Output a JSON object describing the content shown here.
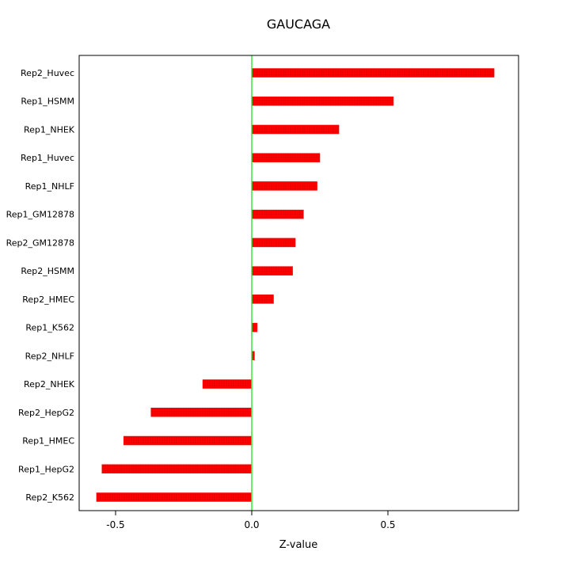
{
  "chart_data": {
    "type": "bar",
    "orientation": "horizontal",
    "title": "GAUCAGA",
    "xlabel": "Z-value",
    "ylabel": "",
    "xlim": [
      -0.63,
      0.98
    ],
    "x_ticks": [
      -0.5,
      0.0,
      0.5
    ],
    "x_tick_labels": [
      "-0.5",
      "0.0",
      "0.5"
    ],
    "grid": false,
    "legend": "none",
    "categories": [
      "Rep2_Huvec",
      "Rep1_HSMM",
      "Rep1_NHEK",
      "Rep1_Huvec",
      "Rep1_NHLF",
      "Rep1_GM12878",
      "Rep2_GM12878",
      "Rep2_HSMM",
      "Rep2_HMEC",
      "Rep1_K562",
      "Rep2_NHLF",
      "Rep2_NHEK",
      "Rep2_HepG2",
      "Rep1_HMEC",
      "Rep1_HepG2",
      "Rep2_K562"
    ],
    "values": [
      0.89,
      0.52,
      0.32,
      0.25,
      0.24,
      0.19,
      0.16,
      0.15,
      0.08,
      0.02,
      0.01,
      -0.18,
      -0.37,
      -0.47,
      -0.55,
      -0.57
    ],
    "colors": {
      "bar": "#ff0000",
      "bar_dot": "#cc0000",
      "zero_line": "#33ee33",
      "axis": "#000000",
      "background": "#ffffff"
    }
  }
}
